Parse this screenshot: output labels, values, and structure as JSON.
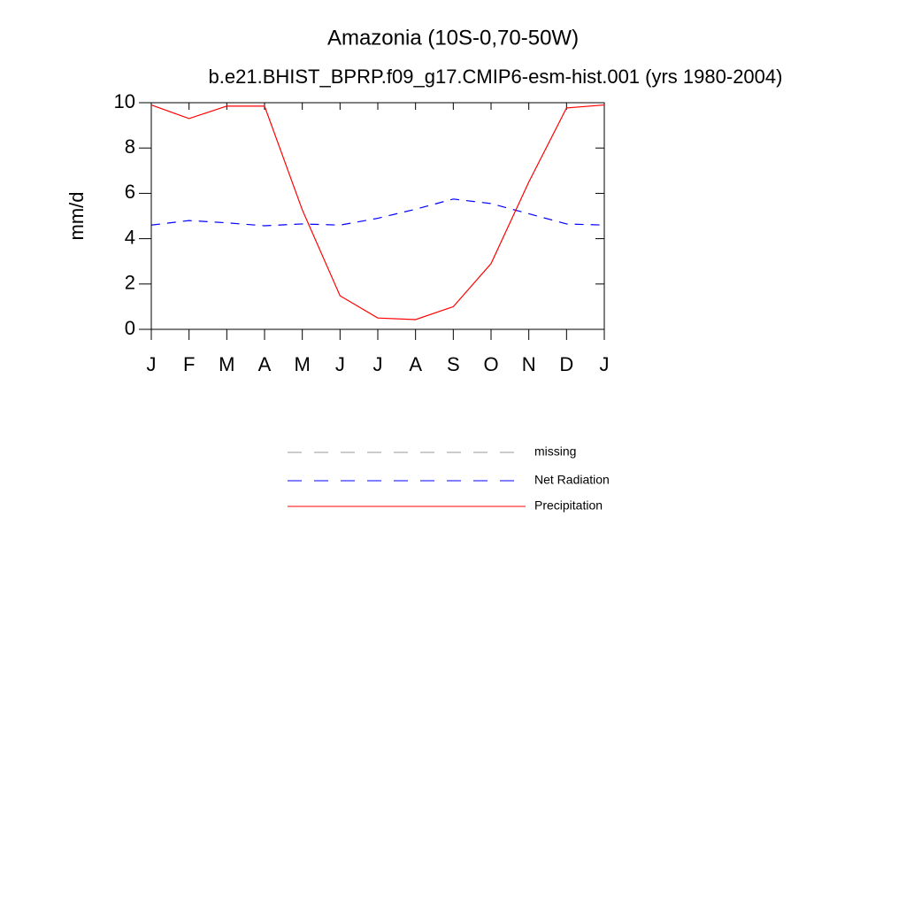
{
  "chart_data": {
    "type": "line",
    "title": "Amazonia (10S-0,70-50W)",
    "subtitle": "b.e21.BHIST_BPRP.f09_g17.CMIP6-esm-hist.001 (yrs 1980-2004)",
    "y_label": "mm/d",
    "categories": [
      "J",
      "F",
      "M",
      "A",
      "M",
      "J",
      "J",
      "A",
      "S",
      "O",
      "N",
      "D",
      "J"
    ],
    "ylim": [
      0,
      10
    ],
    "yticks": [
      0,
      2,
      4,
      6,
      8,
      10
    ],
    "series": [
      {
        "name": "missing",
        "color": "#999999",
        "dashed": true,
        "values": [
          null,
          null,
          null,
          null,
          null,
          null,
          null,
          null,
          null,
          null,
          null,
          null,
          null
        ]
      },
      {
        "name": "Net Radiation",
        "color": "#0000ff",
        "dashed": true,
        "values": [
          4.6,
          4.8,
          4.7,
          4.57,
          4.65,
          4.6,
          4.9,
          5.3,
          5.75,
          5.55,
          5.1,
          4.65,
          4.6
        ]
      },
      {
        "name": "Precipitation",
        "color": "#ff0000",
        "dashed": false,
        "values": [
          9.9,
          9.3,
          9.85,
          9.85,
          5.27,
          1.48,
          0.5,
          0.43,
          1.0,
          2.9,
          6.5,
          9.77,
          9.9
        ]
      }
    ]
  }
}
